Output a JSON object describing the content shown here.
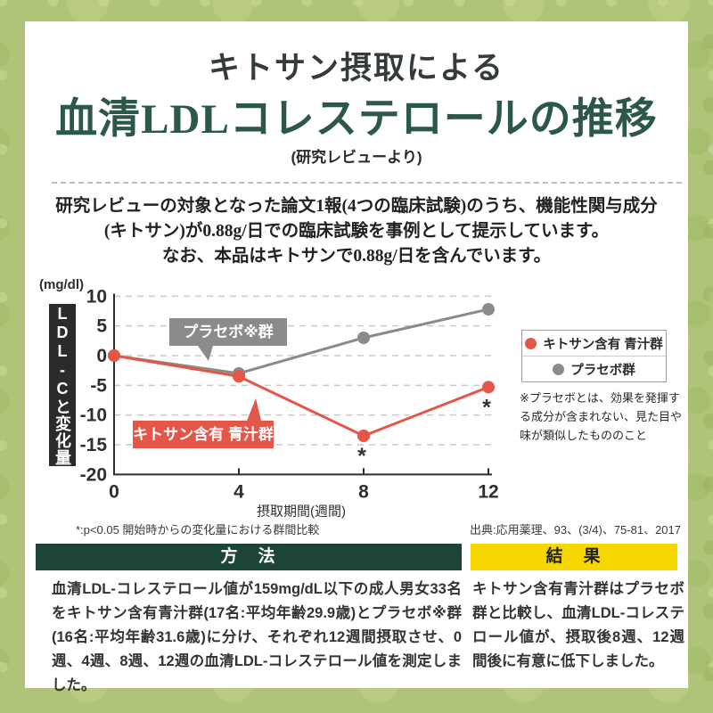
{
  "colors": {
    "background_green": "#afc478",
    "title_dark": "#343c38",
    "title_green": "#2b5847",
    "chitosan_red": "#e45648",
    "placebo_gray": "#8b8b8b",
    "ylabel_black": "#2c2a2a",
    "method_header_green": "#1d4536",
    "result_header_yellow": "#f6d700"
  },
  "header": {
    "title_line1": "キトサン摂取による",
    "title_line2": "血清LDLコレステロールの推移",
    "subtitle": "(研究レビューより)"
  },
  "intro": {
    "line1": "研究レビューの対象となった論文1報(4つの臨床試験)のうち、機能性関与成分",
    "line2": "(キトサン)が0.88g/日での臨床試験を事例として提示しています。",
    "line3": "なお、本品はキトサンで0.88g/日を含んでいます。"
  },
  "chart_data": {
    "type": "line",
    "unit_label": "(mg/dl)",
    "y_axis_label": "LDL-Cと変化量",
    "x_axis_label": "摂取期間(週間)",
    "x": [
      0,
      4,
      8,
      12
    ],
    "x_tick_labels": [
      "0",
      "4",
      "8",
      "12"
    ],
    "y_ticks": [
      10,
      5,
      0,
      -5,
      -10,
      -15,
      -20
    ],
    "ylim": [
      -20,
      10
    ],
    "grid": "dashed horizontal gridlines at 10,5,0,-5,-10,-15",
    "legend_position": "right",
    "series": [
      {
        "name": "キトサン含有 青汁群",
        "color": "#e45648",
        "values": [
          0,
          -3.5,
          -13.5,
          -5.3
        ],
        "significant_weeks": [
          8,
          12
        ]
      },
      {
        "name": "プラセボ群",
        "color": "#8b8b8b",
        "values": [
          0,
          -3,
          3,
          7.8
        ],
        "significant_weeks": []
      }
    ],
    "annotations": {
      "placebo_callout": "プラセボ※群",
      "chitosan_callout": "キトサン含有 青汁群",
      "significance_marker": "*"
    }
  },
  "legend": {
    "items": [
      {
        "label": "キトサン含有 青汁群",
        "color": "#e45648"
      },
      {
        "label": "プラセボ群",
        "color": "#8b8b8b"
      }
    ],
    "note": "※プラセボとは、効果を発揮する成分が含まれない、見た目や味が類似したもののこと"
  },
  "footnotes": {
    "significance": "*:p<0.05 開始時からの変化量における群間比較",
    "source": "出典:応用薬理、93、(3/4)、75-81、2017"
  },
  "method": {
    "header": "方　法",
    "body": "血清LDL-コレステロール値が159mg/dL以下の成人男女33名をキトサン含有青汁群(17名:平均年齢29.9歳)とプラセボ※群(16名:平均年齢31.6歳)に分け、それぞれ12週間摂取させ、0週、4週、8週、12週の血清LDL-コレステロール値を測定しました。"
  },
  "result": {
    "header": "結　果",
    "body": "キトサン含有青汁群はプラセボ群と比較し、血清LDL-コレステロール値が、摂取後8週、12週間後に有意に低下しました。"
  }
}
